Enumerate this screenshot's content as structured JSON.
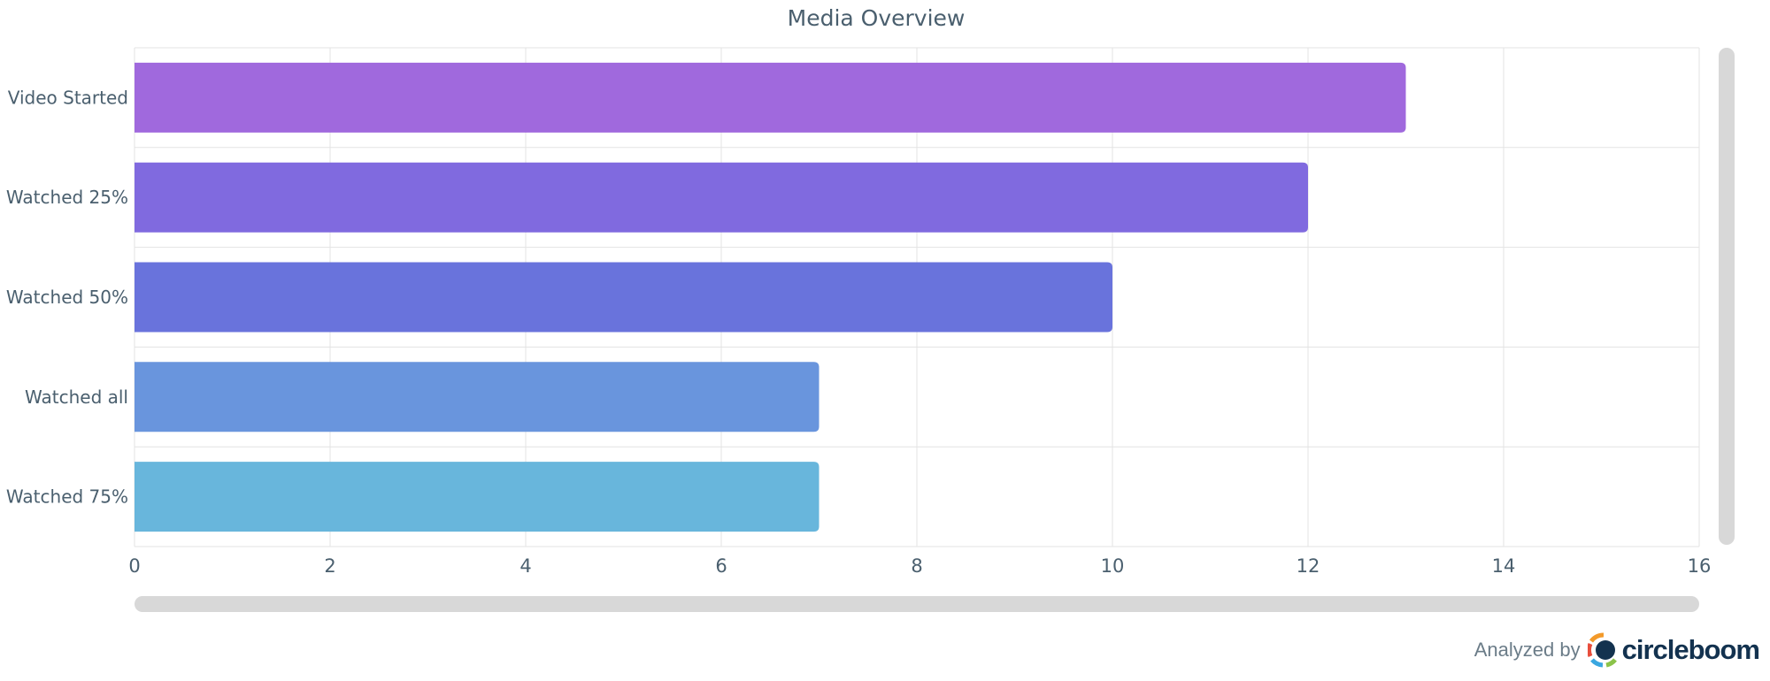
{
  "chart_data": {
    "type": "bar",
    "orientation": "horizontal",
    "title": "Media Overview",
    "categories": [
      "Video Started",
      "Watched 25%",
      "Watched 50%",
      "Watched all",
      "Watched 75%"
    ],
    "values": [
      13,
      12,
      10,
      7,
      7
    ],
    "colors": [
      "#a069dd",
      "#806adf",
      "#6973dc",
      "#6995dd",
      "#68b6dc"
    ],
    "xlim": [
      0,
      16
    ],
    "xticks": [
      0,
      2,
      4,
      6,
      8,
      10,
      12,
      14,
      16
    ],
    "grid": true,
    "xlabel": "",
    "ylabel": ""
  },
  "footer": {
    "analyzed_by": "Analyzed by",
    "brand": "circleboom",
    "logo_icon": "circleboom-logo-icon"
  }
}
